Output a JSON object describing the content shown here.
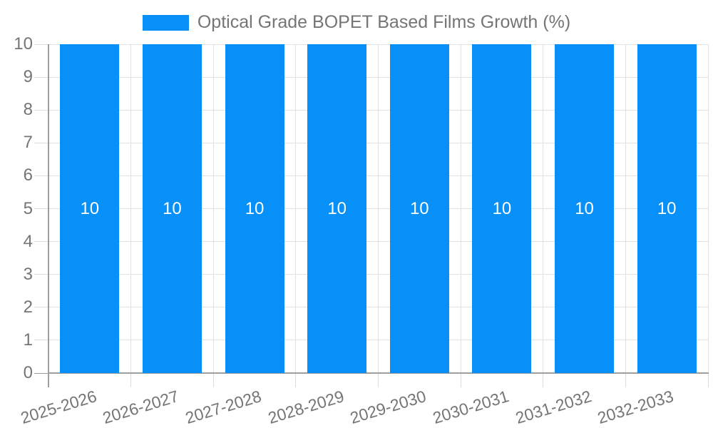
{
  "chart_data": {
    "type": "bar",
    "title": "Optical Grade BOPET Based Films Growth (%)",
    "legend": [
      {
        "label": "Optical Grade BOPET Based Films Growth (%)",
        "color": "#0690f8"
      }
    ],
    "legend_position": "top",
    "categories": [
      "2025-2026",
      "2026-2027",
      "2027-2028",
      "2028-2029",
      "2029-2030",
      "2030-2031",
      "2031-2032",
      "2032-2033"
    ],
    "values": [
      10,
      10,
      10,
      10,
      10,
      10,
      10,
      10
    ],
    "bar_value_labels": [
      "10",
      "10",
      "10",
      "10",
      "10",
      "10",
      "10",
      "10"
    ],
    "bar_value_label_position": "inside-middle",
    "xlabel": "",
    "ylabel": "",
    "ylim": [
      0,
      10
    ],
    "ytick_step": 1,
    "yticks": [
      0,
      1,
      2,
      3,
      4,
      5,
      6,
      7,
      8,
      9,
      10
    ],
    "grid": true,
    "x_label_rotation_deg": -17
  },
  "colors": {
    "bar": "#0690f8",
    "axis_line": "#9e9e9e",
    "grid_line": "#e2e2e2",
    "tick_line": "#dcdcdc",
    "text_label": "#757575",
    "bar_value_text": "#ffffff",
    "background": "#ffffff"
  }
}
